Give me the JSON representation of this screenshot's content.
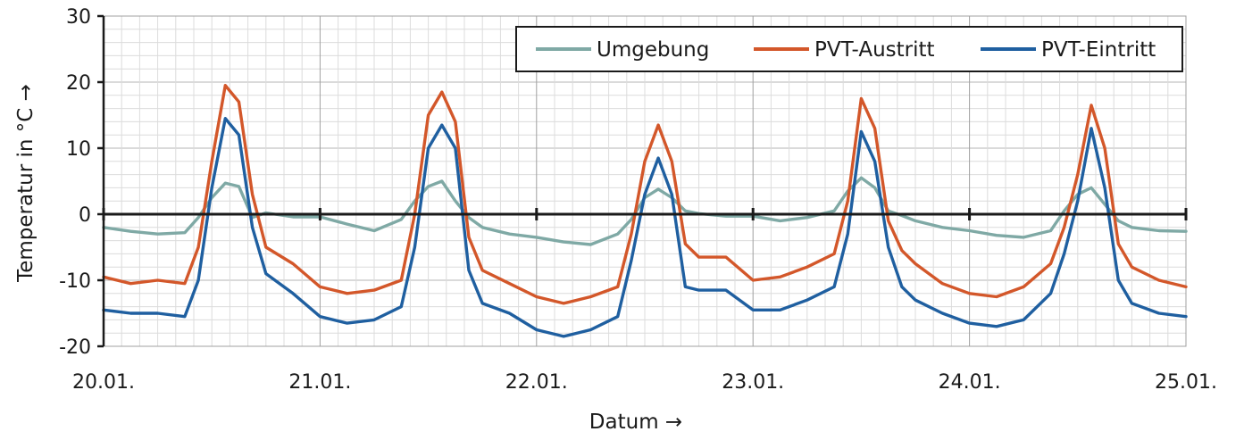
{
  "chart_data": {
    "type": "line",
    "xlabel": "Datum →",
    "ylabel": "Temperatur in °C →",
    "ylim": [
      -20,
      30
    ],
    "yticks": [
      -20,
      -10,
      0,
      10,
      20,
      30
    ],
    "xlim": [
      "20.01. 00:00",
      "25.01. 00:00"
    ],
    "xticks": [
      "20.01.",
      "21.01.",
      "22.01.",
      "23.01.",
      "24.01.",
      "25.01."
    ],
    "x": [
      "20.01. 00:00",
      "20.01. 03:00",
      "20.01. 06:00",
      "20.01. 09:00",
      "20.01. 10:30",
      "20.01. 12:00",
      "20.01. 13:30",
      "20.01. 15:00",
      "20.01. 16:30",
      "20.01. 18:00",
      "20.01. 21:00",
      "21.01. 00:00",
      "21.01. 03:00",
      "21.01. 06:00",
      "21.01. 09:00",
      "21.01. 10:30",
      "21.01. 12:00",
      "21.01. 13:30",
      "21.01. 15:00",
      "21.01. 16:30",
      "21.01. 18:00",
      "21.01. 21:00",
      "22.01. 00:00",
      "22.01. 03:00",
      "22.01. 06:00",
      "22.01. 09:00",
      "22.01. 10:30",
      "22.01. 12:00",
      "22.01. 13:30",
      "22.01. 15:00",
      "22.01. 16:30",
      "22.01. 18:00",
      "22.01. 21:00",
      "23.01. 00:00",
      "23.01. 03:00",
      "23.01. 06:00",
      "23.01. 09:00",
      "23.01. 10:30",
      "23.01. 12:00",
      "23.01. 13:30",
      "23.01. 15:00",
      "23.01. 16:30",
      "23.01. 18:00",
      "23.01. 21:00",
      "24.01. 00:00",
      "24.01. 03:00",
      "24.01. 06:00",
      "24.01. 09:00",
      "24.01. 10:30",
      "24.01. 12:00",
      "24.01. 13:30",
      "24.01. 15:00",
      "24.01. 16:30",
      "24.01. 18:00",
      "24.01. 21:00",
      "25.01. 00:00"
    ],
    "series": [
      {
        "name": "Umgebung",
        "color": "#7fa9a5",
        "values": [
          -2,
          -2.6,
          -3,
          -2.8,
          -0.5,
          2.5,
          4.7,
          4.2,
          -0.5,
          0.2,
          -0.4,
          -0.4,
          -1.5,
          -2.5,
          -0.8,
          2.0,
          4.2,
          5.0,
          2.0,
          -0.5,
          -2.0,
          -3.0,
          -3.5,
          -4.2,
          -4.6,
          -3.0,
          -0.8,
          2.5,
          3.8,
          2.5,
          0.5,
          0.1,
          -0.3,
          -0.3,
          -1.0,
          -0.5,
          0.5,
          3.5,
          5.5,
          4.0,
          0.5,
          -0.2,
          -1.0,
          -2.0,
          -2.5,
          -3.2,
          -3.5,
          -2.5,
          0.5,
          3.0,
          4.0,
          1.5,
          -1.0,
          -2.0,
          -2.5,
          -2.6
        ]
      },
      {
        "name": "PVT-Austritt",
        "color": "#d3572a",
        "values": [
          -9.5,
          -10.5,
          -10,
          -10.5,
          -5,
          8,
          19.5,
          17,
          3,
          -5,
          -7.5,
          -11,
          -12,
          -11.5,
          -10,
          0,
          15,
          18.5,
          14,
          -3.5,
          -8.5,
          -10.5,
          -12.5,
          -13.5,
          -12.5,
          -11,
          -3,
          8,
          13.5,
          8,
          -4.5,
          -6.5,
          -6.5,
          -10,
          -9.5,
          -8,
          -6,
          2,
          17.5,
          13,
          -1,
          -5.5,
          -7.5,
          -10.5,
          -12,
          -12.5,
          -11,
          -7.5,
          -2,
          6,
          16.5,
          10,
          -4.5,
          -8,
          -10,
          -11
        ]
      },
      {
        "name": "PVT-Eintritt",
        "color": "#1f5fa0",
        "values": [
          -14.5,
          -15,
          -15,
          -15.5,
          -10,
          4,
          14.5,
          12,
          -2,
          -9,
          -12,
          -15.5,
          -16.5,
          -16,
          -14,
          -5,
          10,
          13.5,
          10,
          -8.5,
          -13.5,
          -15,
          -17.5,
          -18.5,
          -17.5,
          -15.5,
          -7,
          3,
          8.5,
          3,
          -11,
          -11.5,
          -11.5,
          -14.5,
          -14.5,
          -13,
          -11,
          -3,
          12.5,
          8,
          -5,
          -11,
          -13,
          -15,
          -16.5,
          -17,
          -16,
          -12,
          -6,
          2,
          13,
          4,
          -10,
          -13.5,
          -15,
          -15.5
        ]
      }
    ],
    "legend_position": "top-right",
    "grid": true,
    "zero_line": true
  }
}
